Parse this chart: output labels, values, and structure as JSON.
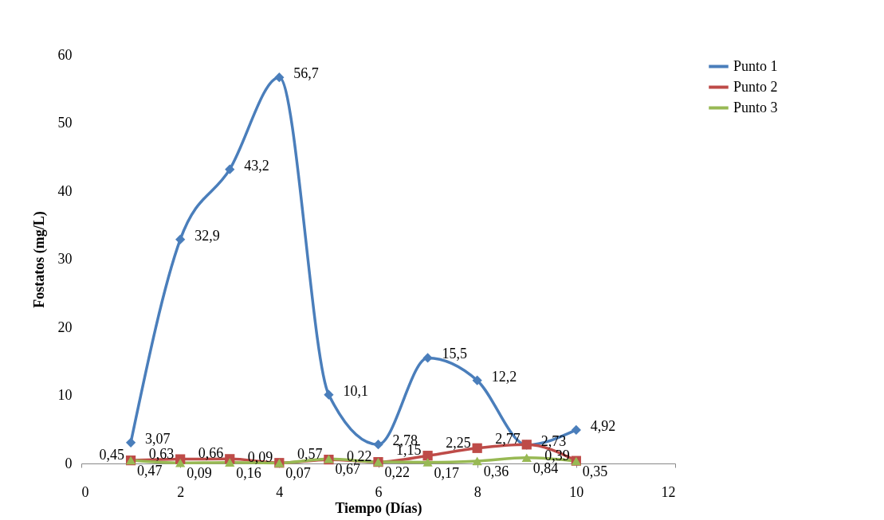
{
  "chart_data": {
    "type": "line",
    "xlabel": "Tiempo (Días)",
    "ylabel": "Fostatos  (mg/L)",
    "x": [
      1,
      2,
      3,
      4,
      5,
      6,
      7,
      8,
      9,
      10
    ],
    "series": [
      {
        "name": "Punto 1",
        "color": "#4a7ebb",
        "marker": "diamond",
        "values": [
          3.07,
          32.9,
          43.2,
          56.7,
          10.1,
          2.78,
          15.5,
          12.2,
          2.73,
          4.92
        ],
        "value_labels": [
          "3,07",
          "32,9",
          "43,2",
          "56,7",
          "10,1",
          "2,78",
          "15,5",
          "12,2",
          "2,73",
          "4,92"
        ]
      },
      {
        "name": "Punto 2",
        "color": "#be4b48",
        "marker": "square",
        "values": [
          0.45,
          0.63,
          0.66,
          0.09,
          0.57,
          0.22,
          1.15,
          2.25,
          2.77,
          0.39
        ],
        "value_labels": [
          "0,45",
          "0,63",
          "0,66",
          "0,09",
          "0,57",
          "0,22",
          "1,15",
          "2,25",
          "2,77",
          "0,39"
        ]
      },
      {
        "name": "Punto 3",
        "color": "#98b954",
        "marker": "triangle",
        "values": [
          0.47,
          0.09,
          0.16,
          0.07,
          0.67,
          0.22,
          0.17,
          0.36,
          0.84,
          0.35
        ],
        "value_labels": [
          "0,47",
          "0,09",
          "0,16",
          "0,07",
          "0,67",
          "0,22",
          "0,17",
          "0,36",
          "0,84",
          "0,35"
        ]
      }
    ],
    "xlim": [
      0,
      12
    ],
    "xticks": [
      0,
      2,
      4,
      6,
      8,
      10,
      12
    ],
    "ylim": [
      0,
      60
    ],
    "yticks": [
      0,
      10,
      20,
      30,
      40,
      50,
      60
    ],
    "legend": "right"
  }
}
